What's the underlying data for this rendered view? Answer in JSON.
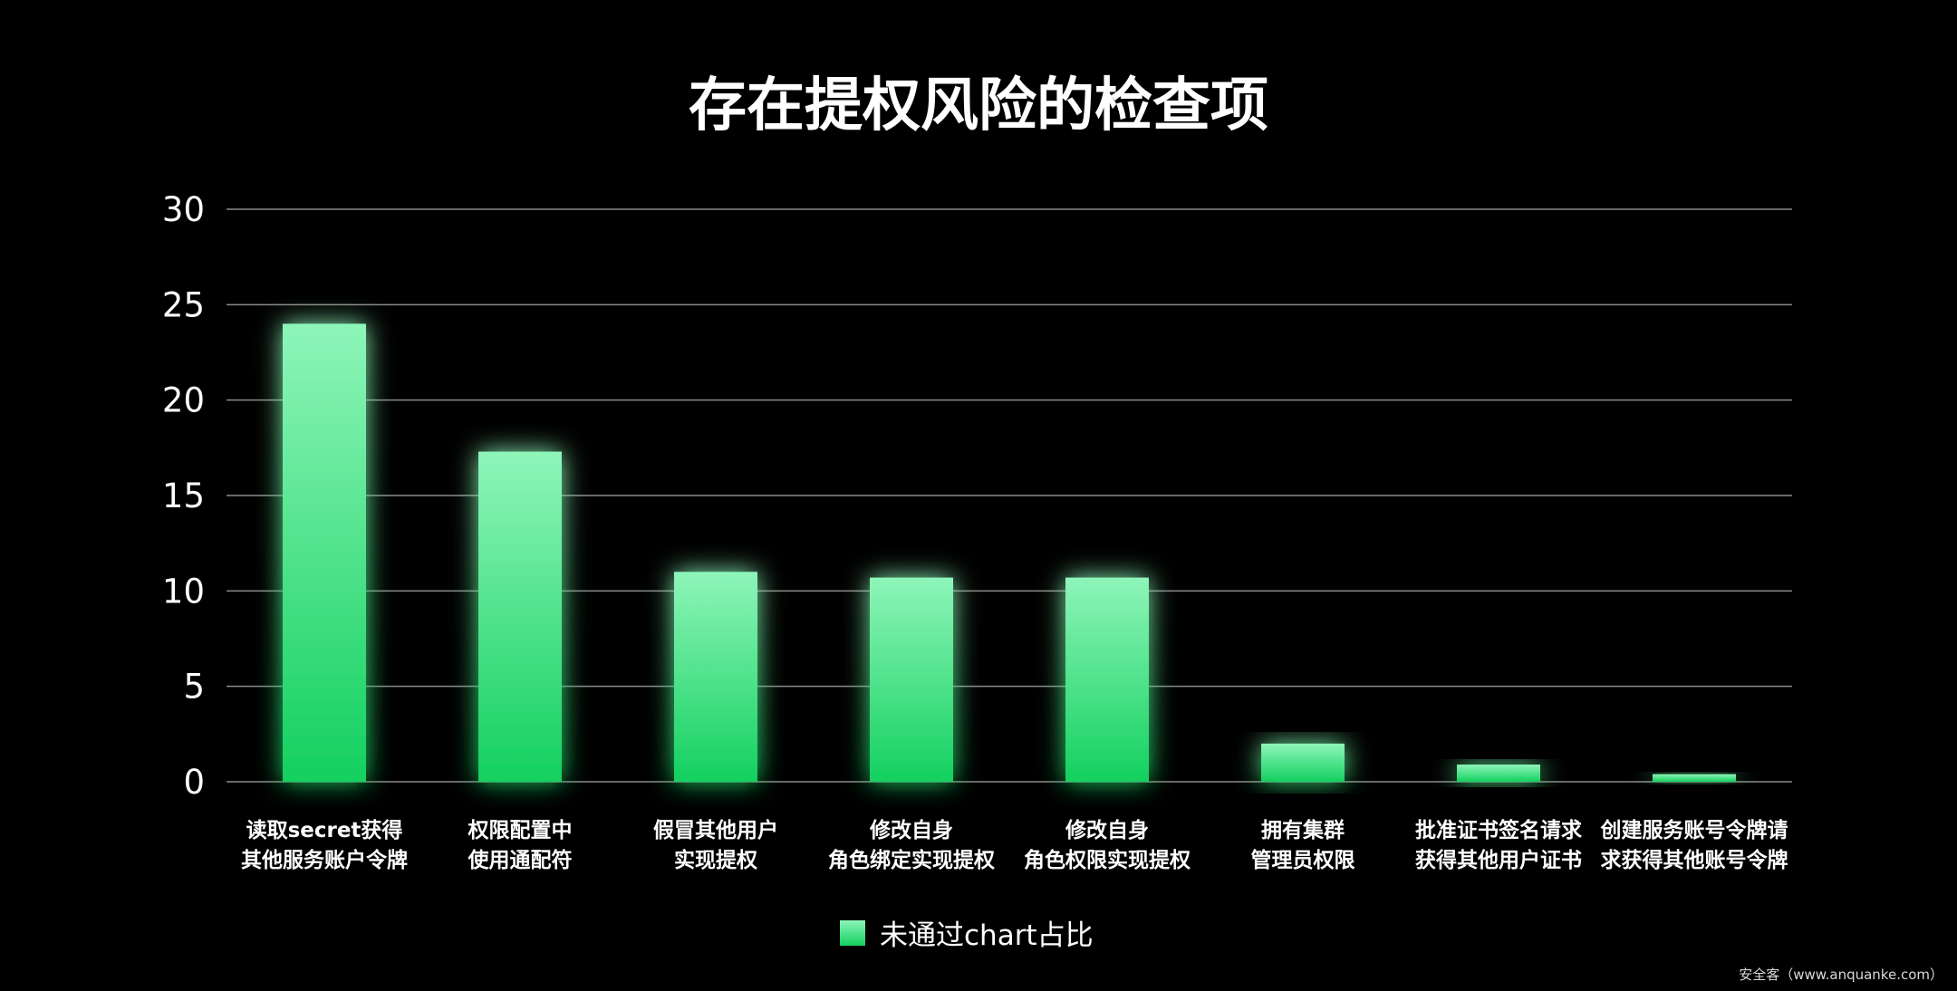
{
  "chart_data": {
    "type": "bar",
    "title": "存在提权风险的检查项",
    "categories": [
      [
        "读取secret获得",
        "其他服务账户令牌"
      ],
      [
        "权限配置中",
        "使用通配符"
      ],
      [
        "假冒其他用户",
        "实现提权"
      ],
      [
        "修改自身",
        "角色绑定实现提权"
      ],
      [
        "修改自身",
        "角色权限实现提权"
      ],
      [
        "拥有集群",
        "管理员权限"
      ],
      [
        "批准证书签名请求",
        "获得其他用户证书"
      ],
      [
        "创建服务账号令牌请",
        "求获得其他账号令牌"
      ]
    ],
    "series": [
      {
        "name": "未通过chart占比",
        "values": [
          24,
          17.3,
          11,
          10.7,
          10.7,
          2,
          0.9,
          0.4
        ],
        "color": "#13d05f",
        "color_top": "#8ef5b9"
      }
    ],
    "ylim": [
      0,
      30
    ],
    "yticks": [
      0,
      5,
      10,
      15,
      20,
      25,
      30
    ],
    "grid": true,
    "legend_position": "bottom-center"
  },
  "watermark": "安全客（www.anquanke.com）"
}
